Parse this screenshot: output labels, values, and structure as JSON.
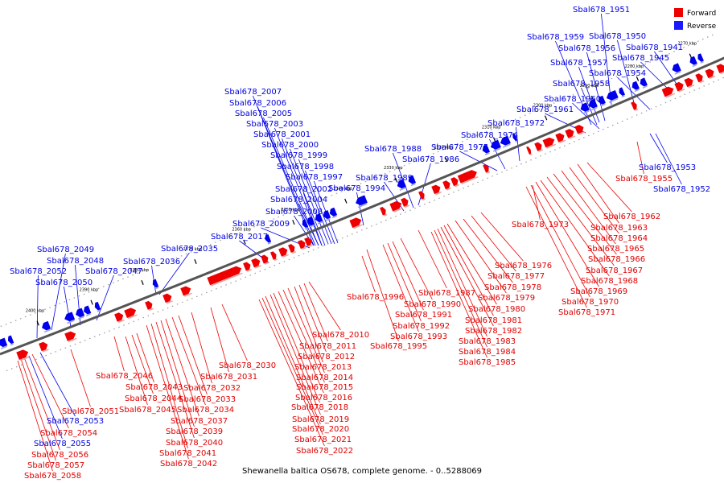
{
  "caption": "Shewanella baltica OS678, complete genome. - 0..5288069",
  "colors": {
    "forward": "#ee0000",
    "reverse": "#0000ee",
    "backbone": "#555555"
  },
  "legend": [
    {
      "label": "Forward",
      "color": "#ee0000"
    },
    {
      "label": "Reverse",
      "color": "#1a1aff"
    }
  ],
  "ticks": [
    "2270 kbp",
    "2280 kbp",
    "2290 kbp",
    "2300 kbp",
    "2310 kbp",
    "2320 kbp",
    "2330 kbp",
    "2340 kbp",
    "2350 kbp",
    "2360 kbp",
    "2370 kbp",
    "2380 kbp",
    "2390 kbp",
    "2400 kbp"
  ],
  "reverse_labels": [
    "Sbal678_1951",
    "Sbal678_1950",
    "Sbal678_1959",
    "Sbal678_1956",
    "Sbal678_1941",
    "Sbal678_1945",
    "Sbal678_1957",
    "Sbal678_1954",
    "Sbal678_1958",
    "Sbal678_1960",
    "Sbal678_1961",
    "Sbal678_1972",
    "Sbal678_1974",
    "Sbal678_1975",
    "Sbal678_1988",
    "Sbal678_1986",
    "Sbal678_1989",
    "Sbal678_1994",
    "Sbal678_2007",
    "Sbal678_2006",
    "Sbal678_2005",
    "Sbal678_2003",
    "Sbal678_2001",
    "Sbal678_2000",
    "Sbal678_1999",
    "Sbal678_1998",
    "Sbal678_1997",
    "Sbal678_2002",
    "Sbal678_2004",
    "Sbal678_2008",
    "Sbal678_2009",
    "Sbal678_2017",
    "Sbal678_2035",
    "Sbal678_2036",
    "Sbal678_2049",
    "Sbal678_2048",
    "Sbal678_2047",
    "Sbal678_2052",
    "Sbal678_2050",
    "Sbal678_1953",
    "Sbal678_1952",
    "Sbal678_2053",
    "Sbal678_2055"
  ],
  "forward_labels": [
    "Sbal678_1955",
    "Sbal678_1962",
    "Sbal678_1973",
    "Sbal678_1963",
    "Sbal678_1964",
    "Sbal678_1965",
    "Sbal678_1966",
    "Sbal678_1967",
    "Sbal678_1968",
    "Sbal678_1969",
    "Sbal678_1970",
    "Sbal678_1971",
    "Sbal678_1976",
    "Sbal678_1977",
    "Sbal678_1978",
    "Sbal678_1979",
    "Sbal678_1987",
    "Sbal678_1990",
    "Sbal678_1980",
    "Sbal678_1991",
    "Sbal678_1981",
    "Sbal678_1992",
    "Sbal678_1982",
    "Sbal678_1993",
    "Sbal678_1983",
    "Sbal678_1995",
    "Sbal678_1984",
    "Sbal678_1985",
    "Sbal678_1996",
    "Sbal678_2010",
    "Sbal678_2011",
    "Sbal678_2012",
    "Sbal678_2030",
    "Sbal678_2013",
    "Sbal678_2046",
    "Sbal678_2031",
    "Sbal678_2014",
    "Sbal678_2043",
    "Sbal678_2032",
    "Sbal678_2015",
    "Sbal678_2044",
    "Sbal678_2033",
    "Sbal678_2016",
    "Sbal678_2045",
    "Sbal678_2034",
    "Sbal678_2018",
    "Sbal678_2051",
    "Sbal678_2037",
    "Sbal678_2019",
    "Sbal678_2054",
    "Sbal678_2039",
    "Sbal678_2020",
    "Sbal678_2040",
    "Sbal678_2056",
    "Sbal678_2021",
    "Sbal678_2041",
    "Sbal678_2057",
    "Sbal678_2022",
    "Sbal678_2042",
    "Sbal678_2058"
  ]
}
